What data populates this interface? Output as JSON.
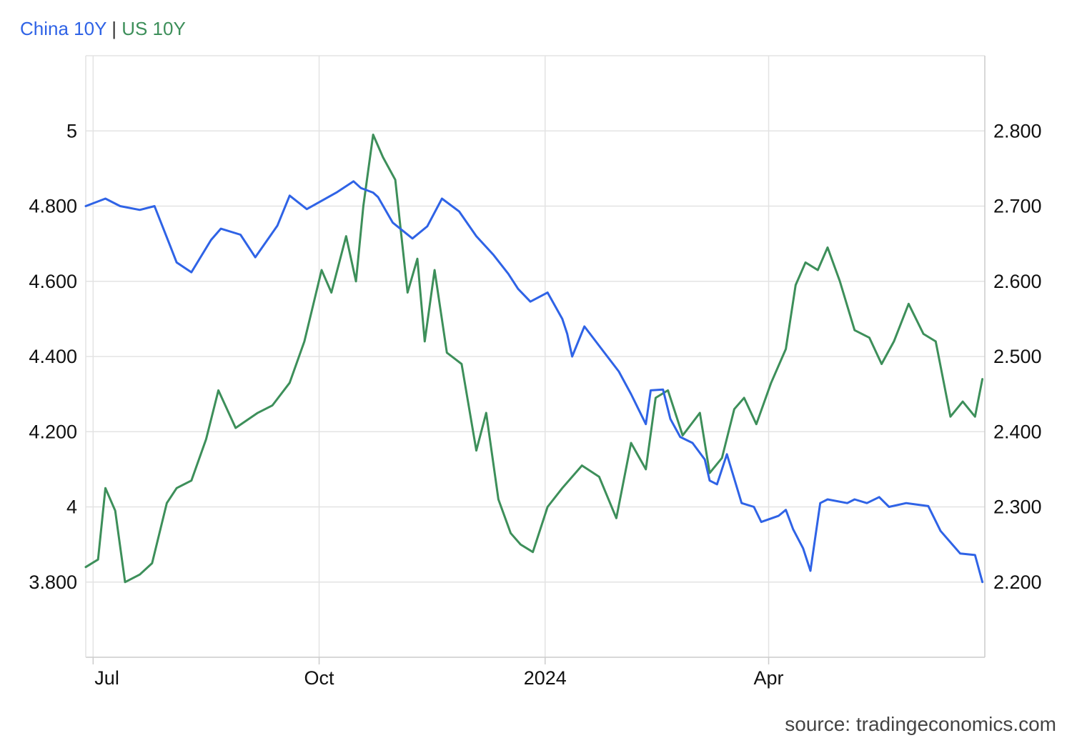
{
  "colors": {
    "china": "#2f63e6",
    "us": "#3d8f5a",
    "grid": "#e3e3e3",
    "axis": "#cccccc"
  },
  "legend": {
    "separator": "|"
  },
  "source": "source: tradingeconomics.com",
  "chart_data": {
    "type": "line",
    "grid": true,
    "legend_position": "top-left",
    "x_tick_labels": [
      "Jul",
      "Oct",
      "2024",
      "Apr"
    ],
    "x_ticks": [
      "2023-07-01",
      "2023-10-01",
      "2024-01-01",
      "2024-04-01"
    ],
    "x_range": [
      "2023-06-28",
      "2024-06-28"
    ],
    "y_left": {
      "range": [
        3.6,
        5.2
      ],
      "ticks": [
        3.8,
        4.0,
        4.2,
        4.4,
        4.6,
        4.8,
        5.0
      ],
      "tick_labels": [
        "3.800",
        "4",
        "4.200",
        "4.400",
        "4.600",
        "4.800",
        "5"
      ]
    },
    "y_right": {
      "range": [
        2.1,
        2.9
      ],
      "ticks": [
        2.2,
        2.3,
        2.4,
        2.5,
        2.6,
        2.7,
        2.8
      ],
      "tick_labels": [
        "2.200",
        "2.300",
        "2.400",
        "2.500",
        "2.600",
        "2.700",
        "2.800"
      ]
    },
    "series": [
      {
        "name": "China 10Y",
        "axis": "right",
        "color": "#2f63e6",
        "x": [
          "2023-06-28",
          "2023-07-06",
          "2023-07-12",
          "2023-07-20",
          "2023-07-26",
          "2023-08-01",
          "2023-08-04",
          "2023-08-10",
          "2023-08-18",
          "2023-08-22",
          "2023-08-30",
          "2023-09-05",
          "2023-09-14",
          "2023-09-19",
          "2023-09-26",
          "2023-10-08",
          "2023-10-15",
          "2023-10-18",
          "2023-10-23",
          "2023-10-25",
          "2023-10-31",
          "2023-11-08",
          "2023-11-14",
          "2023-11-20",
          "2023-11-27",
          "2023-12-04",
          "2023-12-11",
          "2023-12-17",
          "2023-12-21",
          "2023-12-26",
          "2024-01-02",
          "2024-01-08",
          "2024-01-10",
          "2024-01-12",
          "2024-01-17",
          "2024-01-24",
          "2024-01-31",
          "2024-02-05",
          "2024-02-11",
          "2024-02-13",
          "2024-02-18",
          "2024-02-21",
          "2024-02-25",
          "2024-03-01",
          "2024-03-06",
          "2024-03-08",
          "2024-03-11",
          "2024-03-15",
          "2024-03-21",
          "2024-03-26",
          "2024-03-29",
          "2024-04-05",
          "2024-04-08",
          "2024-04-11",
          "2024-04-15",
          "2024-04-18",
          "2024-04-22",
          "2024-04-25",
          "2024-05-03",
          "2024-05-06",
          "2024-05-11",
          "2024-05-16",
          "2024-05-20",
          "2024-05-27",
          "2024-06-05",
          "2024-06-10",
          "2024-06-18",
          "2024-06-24",
          "2024-06-27"
        ],
        "values": [
          2.7,
          2.71,
          2.7,
          2.695,
          2.7,
          2.65,
          2.625,
          2.612,
          2.655,
          2.67,
          2.662,
          2.632,
          2.674,
          2.714,
          2.696,
          2.718,
          2.733,
          2.724,
          2.718,
          2.712,
          2.678,
          2.657,
          2.673,
          2.71,
          2.693,
          2.66,
          2.635,
          2.61,
          2.59,
          2.573,
          2.585,
          2.55,
          2.53,
          2.5,
          2.54,
          2.51,
          2.48,
          2.45,
          2.41,
          2.455,
          2.456,
          2.417,
          2.393,
          2.385,
          2.363,
          2.335,
          2.33,
          2.37,
          2.305,
          2.3,
          2.28,
          2.288,
          2.296,
          2.27,
          2.245,
          2.215,
          2.305,
          2.31,
          2.305,
          2.31,
          2.305,
          2.313,
          2.3,
          2.305,
          2.301,
          2.268,
          2.238,
          2.236,
          2.2
        ]
      },
      {
        "name": "US 10Y",
        "axis": "left",
        "color": "#3d8f5a",
        "x": [
          "2023-06-28",
          "2023-07-03",
          "2023-07-06",
          "2023-07-10",
          "2023-07-14",
          "2023-07-20",
          "2023-07-25",
          "2023-07-31",
          "2023-08-04",
          "2023-08-10",
          "2023-08-16",
          "2023-08-21",
          "2023-08-28",
          "2023-09-06",
          "2023-09-12",
          "2023-09-19",
          "2023-09-25",
          "2023-10-02",
          "2023-10-06",
          "2023-10-12",
          "2023-10-16",
          "2023-10-19",
          "2023-10-23",
          "2023-10-27",
          "2023-11-01",
          "2023-11-06",
          "2023-11-10",
          "2023-11-13",
          "2023-11-17",
          "2023-11-22",
          "2023-11-28",
          "2023-12-04",
          "2023-12-08",
          "2023-12-13",
          "2023-12-18",
          "2023-12-22",
          "2023-12-27",
          "2024-01-02",
          "2024-01-08",
          "2024-01-16",
          "2024-01-23",
          "2024-01-30",
          "2024-02-05",
          "2024-02-11",
          "2024-02-15",
          "2024-02-20",
          "2024-02-26",
          "2024-03-04",
          "2024-03-08",
          "2024-03-13",
          "2024-03-18",
          "2024-03-22",
          "2024-03-27",
          "2024-04-02",
          "2024-04-08",
          "2024-04-12",
          "2024-04-16",
          "2024-04-21",
          "2024-04-25",
          "2024-04-30",
          "2024-05-06",
          "2024-05-12",
          "2024-05-17",
          "2024-05-22",
          "2024-05-28",
          "2024-06-03",
          "2024-06-08",
          "2024-06-14",
          "2024-06-19",
          "2024-06-24",
          "2024-06-27"
        ],
        "values": [
          3.84,
          3.86,
          4.05,
          3.99,
          3.8,
          3.82,
          3.85,
          4.01,
          4.05,
          4.07,
          4.18,
          4.31,
          4.21,
          4.25,
          4.27,
          4.33,
          4.44,
          4.63,
          4.57,
          4.72,
          4.6,
          4.8,
          4.99,
          4.93,
          4.87,
          4.57,
          4.66,
          4.44,
          4.63,
          4.41,
          4.38,
          4.15,
          4.25,
          4.02,
          3.93,
          3.9,
          3.88,
          4.0,
          4.05,
          4.11,
          4.08,
          3.97,
          4.17,
          4.1,
          4.29,
          4.31,
          4.19,
          4.25,
          4.09,
          4.13,
          4.26,
          4.29,
          4.22,
          4.33,
          4.42,
          4.59,
          4.65,
          4.63,
          4.69,
          4.6,
          4.47,
          4.45,
          4.38,
          4.44,
          4.54,
          4.46,
          4.44,
          4.24,
          4.28,
          4.24,
          4.34
        ]
      }
    ]
  }
}
